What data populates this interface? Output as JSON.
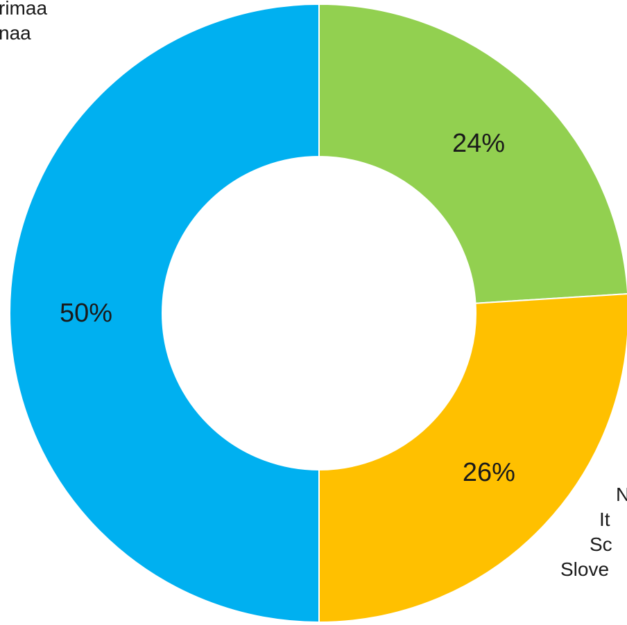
{
  "chart_data": {
    "type": "pie",
    "donut": true,
    "slices": [
      {
        "label": "24%",
        "value": 24,
        "color": "#92D050"
      },
      {
        "label": "26%",
        "value": 26,
        "color": "#FFC000"
      },
      {
        "label": "50%",
        "value": 50,
        "color": "#00B0F0"
      }
    ],
    "start_angle_deg": 0,
    "direction": "clockwise",
    "outside_labels": {
      "top_left": [
        "rimaa",
        "naa"
      ],
      "bottom_right": [
        "N",
        "It",
        "Sc",
        "Slove"
      ]
    },
    "legend": "none",
    "grid": false
  }
}
